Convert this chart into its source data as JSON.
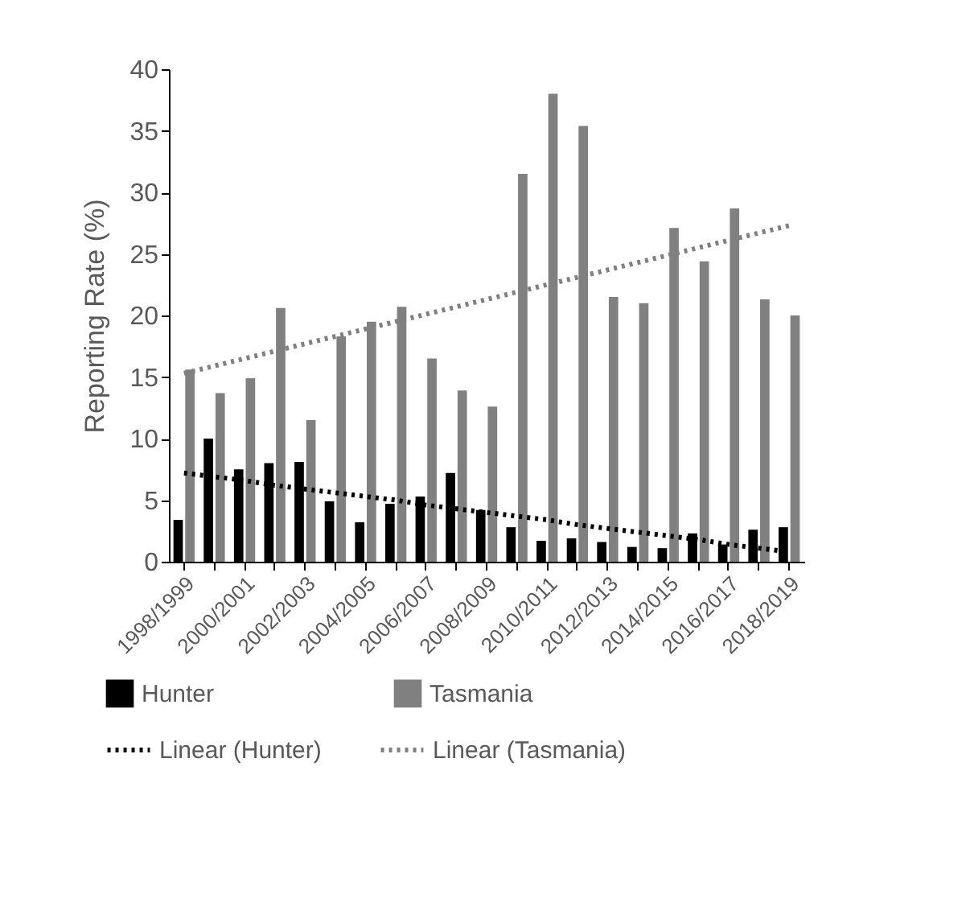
{
  "chart_data": {
    "type": "bar",
    "ylabel": "Reporting Rate (%)",
    "categories": [
      "1998/1999",
      null,
      "2000/2001",
      null,
      "2002/2003",
      null,
      "2004/2005",
      null,
      "2006/2007",
      null,
      "2008/2009",
      null,
      "2010/2011",
      null,
      "2012/2013",
      null,
      "2014/2015",
      null,
      "2016/2017",
      null,
      "2018/2019"
    ],
    "series": [
      {
        "name": "Hunter",
        "color": "#000000",
        "values": [
          3.4,
          10.0,
          7.5,
          8.0,
          8.1,
          4.9,
          3.2,
          4.7,
          5.3,
          7.2,
          4.2,
          2.8,
          1.7,
          1.9,
          1.6,
          1.2,
          1.1,
          2.3,
          1.4,
          2.6,
          2.8
        ]
      },
      {
        "name": "Tasmania",
        "color": "#808080",
        "values": [
          15.6,
          13.7,
          14.9,
          20.6,
          11.5,
          18.3,
          19.5,
          20.7,
          16.5,
          13.9,
          12.6,
          31.5,
          38.0,
          35.4,
          21.5,
          21.0,
          27.1,
          24.4,
          28.7,
          21.3,
          20.0
        ]
      },
      {
        "name": "Linear (Hunter)",
        "type": "line",
        "line_style": "dotted",
        "color": "#000000",
        "values": [
          7.2,
          6.9,
          6.6,
          6.2,
          5.9,
          5.6,
          5.3,
          5.0,
          4.6,
          4.3,
          4.0,
          3.7,
          3.4,
          3.0,
          2.7,
          2.4,
          2.1,
          1.8,
          1.4,
          1.1,
          0.8
        ]
      },
      {
        "name": "Linear (Tasmania)",
        "type": "line",
        "line_style": "dotted",
        "color": "#808080",
        "values": [
          15.3,
          15.9,
          16.5,
          17.1,
          17.7,
          18.3,
          18.9,
          19.5,
          20.1,
          20.7,
          21.3,
          21.9,
          22.5,
          23.1,
          23.7,
          24.3,
          24.9,
          25.5,
          26.1,
          26.7,
          27.3
        ]
      }
    ],
    "ylim": [
      0,
      40
    ],
    "yticks": [
      0,
      5,
      10,
      15,
      20,
      25,
      30,
      35,
      40
    ],
    "grid": false,
    "legend": "bottom",
    "marker": "none"
  }
}
